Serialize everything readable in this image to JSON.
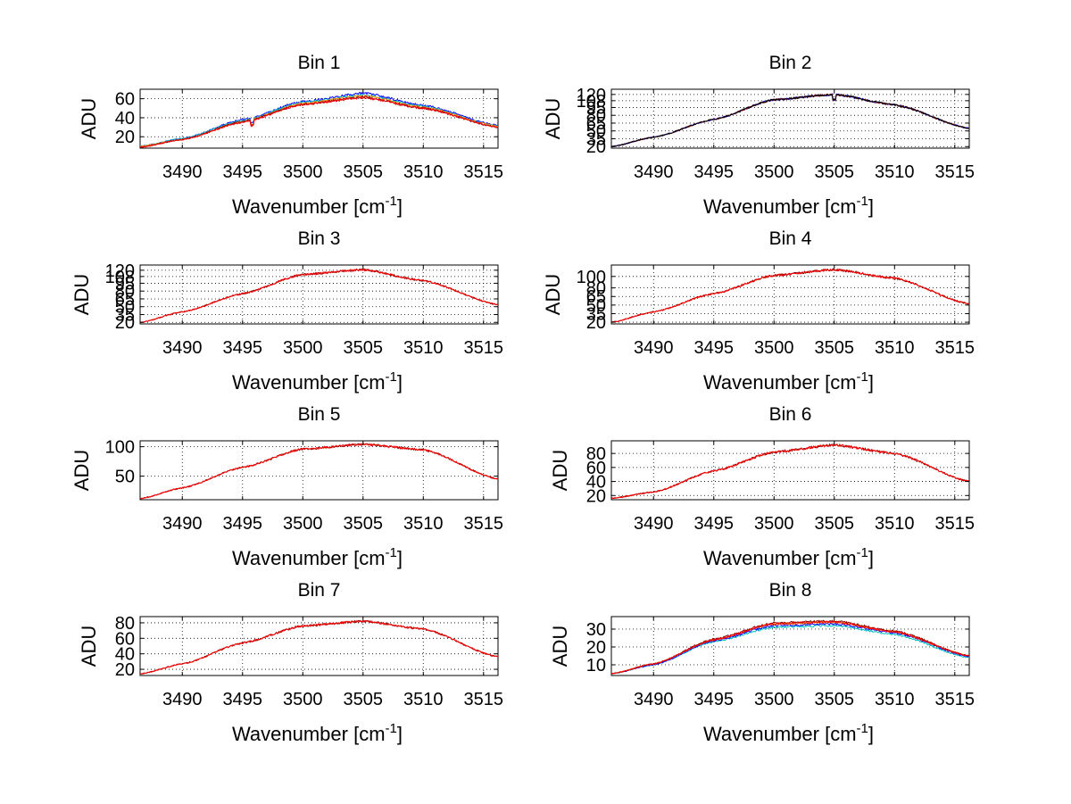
{
  "chart_data": [
    {
      "type": "line",
      "title": "Bin 1",
      "xlabel": "Wavenumber [cm",
      "xlabel_sup": "-1",
      "xlabel_tail": "]",
      "ylabel": "ADU",
      "xlim": [
        3486.5,
        3516.2
      ],
      "ylim": [
        8,
        70
      ],
      "xticks": [
        3490,
        3495,
        3500,
        3505,
        3510,
        3515
      ],
      "xtick_labels": [
        "3490",
        "3495",
        "3500",
        "3505",
        "3510",
        "3515"
      ],
      "yticks": [
        20,
        40,
        60
      ],
      "ytick_labels": [
        "20",
        "40",
        "60"
      ],
      "grid": true,
      "x": [
        3486.5,
        3490,
        3495,
        3500,
        3505,
        3510,
        3516.2
      ],
      "series": [
        {
          "values": [
            10,
            18,
            38,
            57,
            66,
            53,
            32
          ],
          "color": "#0000ff",
          "noise": 1.2,
          "dip": 3495.8
        },
        {
          "values": [
            10,
            18,
            37,
            56,
            64,
            52,
            31
          ],
          "color": "#00bfbf",
          "noise": 1.2,
          "dip": 3495.8
        },
        {
          "values": [
            10,
            17,
            36,
            55,
            63,
            51,
            31
          ],
          "color": "#ff8c00",
          "noise": 1.2,
          "dip": 3495.8
        },
        {
          "values": [
            9,
            17,
            36,
            54,
            62,
            50,
            30
          ],
          "color": "#800000",
          "noise": 1.2,
          "dip": 3495.8
        },
        {
          "values": [
            9,
            17,
            35,
            54,
            61,
            50,
            30
          ],
          "color": "#ff0000",
          "noise": 1.2,
          "dip": 3495.8
        }
      ]
    },
    {
      "type": "line",
      "title": "Bin 2",
      "xlabel": "Wavenumber [cm",
      "xlabel_sup": "-1",
      "xlabel_tail": "]",
      "ylabel": "ADU",
      "xlim": [
        3486.5,
        3516.2
      ],
      "ylim": [
        17,
        130
      ],
      "xticks": [
        3490,
        3495,
        3500,
        3505,
        3510,
        3515
      ],
      "xtick_labels": [
        "3490",
        "3495",
        "3500",
        "3505",
        "3510",
        "3515"
      ],
      "yticks": [
        20,
        35,
        50,
        65,
        80,
        95,
        108,
        120
      ],
      "ytick_labels": [
        "20",
        "35",
        "50",
        "65",
        "80",
        "95",
        "108",
        "120"
      ],
      "grid": true,
      "x": [
        3486.5,
        3490,
        3495,
        3500,
        3505,
        3510,
        3516.2
      ],
      "series": [
        {
          "values": [
            20,
            38,
            72,
            110,
            120,
            100,
            55
          ],
          "color": "#0000ff",
          "noise": 2,
          "dip": 3505
        },
        {
          "values": [
            20,
            38,
            72,
            110,
            120,
            100,
            55
          ],
          "color": "#800000",
          "noise": 2,
          "dip": 3505
        },
        {
          "values": [
            20,
            38,
            72,
            110,
            120,
            100,
            55
          ],
          "color": "#000000",
          "noise": 2,
          "dip": 3505
        }
      ]
    },
    {
      "type": "line",
      "title": "Bin 3",
      "xlabel": "Wavenumber [cm",
      "xlabel_sup": "-1",
      "xlabel_tail": "]",
      "ylabel": "ADU",
      "xlim": [
        3486.5,
        3516.2
      ],
      "ylim": [
        17,
        130
      ],
      "xticks": [
        3490,
        3495,
        3500,
        3505,
        3510,
        3515
      ],
      "xtick_labels": [
        "3490",
        "3495",
        "3500",
        "3505",
        "3510",
        "3515"
      ],
      "yticks": [
        20,
        35,
        50,
        65,
        80,
        95,
        108,
        120
      ],
      "ytick_labels": [
        "20",
        "35",
        "50",
        "65",
        "80",
        "95",
        "108",
        "120"
      ],
      "grid": true,
      "x": [
        3486.5,
        3490,
        3495,
        3500,
        3505,
        3510,
        3516.2
      ],
      "series": [
        {
          "values": [
            20,
            40,
            75,
            112,
            121,
            100,
            54
          ],
          "color": "#800000",
          "noise": 2
        },
        {
          "values": [
            20,
            40,
            75,
            112,
            121,
            100,
            54
          ],
          "color": "#ff0000",
          "noise": 2
        }
      ]
    },
    {
      "type": "line",
      "title": "Bin 4",
      "xlabel": "Wavenumber [cm",
      "xlabel_sup": "-1",
      "xlabel_tail": "]",
      "ylabel": "ADU",
      "xlim": [
        3486.5,
        3516.2
      ],
      "ylim": [
        17,
        120
      ],
      "xticks": [
        3490,
        3495,
        3500,
        3505,
        3510,
        3515
      ],
      "xtick_labels": [
        "3490",
        "3495",
        "3500",
        "3505",
        "3510",
        "3515"
      ],
      "yticks": [
        20,
        35,
        50,
        65,
        80,
        100
      ],
      "ytick_labels": [
        "20",
        "35",
        "50",
        "65",
        "80",
        "100"
      ],
      "grid": true,
      "x": [
        3486.5,
        3490,
        3495,
        3500,
        3505,
        3510,
        3516.2
      ],
      "series": [
        {
          "values": [
            20,
            38,
            70,
            102,
            112,
            97,
            52
          ],
          "color": "#800000",
          "noise": 2
        },
        {
          "values": [
            20,
            38,
            70,
            102,
            112,
            97,
            52
          ],
          "color": "#ff0000",
          "noise": 2
        }
      ]
    },
    {
      "type": "line",
      "title": "Bin 5",
      "xlabel": "Wavenumber [cm",
      "xlabel_sup": "-1",
      "xlabel_tail": "]",
      "ylabel": "ADU",
      "xlim": [
        3486.5,
        3516.2
      ],
      "ylim": [
        10,
        110
      ],
      "xticks": [
        3490,
        3495,
        3500,
        3505,
        3510,
        3515
      ],
      "xtick_labels": [
        "3490",
        "3495",
        "3500",
        "3505",
        "3510",
        "3515"
      ],
      "yticks": [
        50,
        100
      ],
      "ytick_labels": [
        "50",
        "100"
      ],
      "grid": true,
      "x": [
        3486.5,
        3490,
        3495,
        3500,
        3505,
        3510,
        3516.2
      ],
      "series": [
        {
          "values": [
            12,
            30,
            65,
            96,
            104,
            95,
            45
          ],
          "color": "#800000",
          "noise": 1.8
        },
        {
          "values": [
            12,
            30,
            65,
            96,
            104,
            95,
            45
          ],
          "color": "#ff0000",
          "noise": 1.8
        }
      ]
    },
    {
      "type": "line",
      "title": "Bin 6",
      "xlabel": "Wavenumber [cm",
      "xlabel_sup": "-1",
      "xlabel_tail": "]",
      "ylabel": "ADU",
      "xlim": [
        3486.5,
        3516.2
      ],
      "ylim": [
        14,
        98
      ],
      "xticks": [
        3490,
        3495,
        3500,
        3505,
        3510,
        3515
      ],
      "xtick_labels": [
        "3490",
        "3495",
        "3500",
        "3505",
        "3510",
        "3515"
      ],
      "yticks": [
        20,
        40,
        60,
        80
      ],
      "ytick_labels": [
        "20",
        "40",
        "60",
        "80"
      ],
      "grid": true,
      "x": [
        3486.5,
        3490,
        3495,
        3500,
        3505,
        3510,
        3516.2
      ],
      "series": [
        {
          "values": [
            16,
            25,
            55,
            82,
            92,
            80,
            40
          ],
          "color": "#800000",
          "noise": 1.8
        },
        {
          "values": [
            16,
            25,
            55,
            82,
            92,
            80,
            40
          ],
          "color": "#ff0000",
          "noise": 1.8
        }
      ]
    },
    {
      "type": "line",
      "title": "Bin 7",
      "xlabel": "Wavenumber [cm",
      "xlabel_sup": "-1",
      "xlabel_tail": "]",
      "ylabel": "ADU",
      "xlim": [
        3486.5,
        3516.2
      ],
      "ylim": [
        12,
        88
      ],
      "xticks": [
        3490,
        3495,
        3500,
        3505,
        3510,
        3515
      ],
      "xtick_labels": [
        "3490",
        "3495",
        "3500",
        "3505",
        "3510",
        "3515"
      ],
      "yticks": [
        20,
        40,
        60,
        80
      ],
      "ytick_labels": [
        "20",
        "40",
        "60",
        "80"
      ],
      "grid": true,
      "x": [
        3486.5,
        3490,
        3495,
        3500,
        3505,
        3510,
        3516.2
      ],
      "series": [
        {
          "values": [
            14,
            27,
            54,
            76,
            82,
            72,
            36
          ],
          "color": "#800000",
          "noise": 1.4
        },
        {
          "values": [
            14,
            27,
            54,
            76,
            82,
            72,
            36
          ],
          "color": "#ff0000",
          "noise": 1.4
        }
      ]
    },
    {
      "type": "line",
      "title": "Bin 8",
      "xlabel": "Wavenumber [cm",
      "xlabel_sup": "-1",
      "xlabel_tail": "]",
      "ylabel": "ADU",
      "xlim": [
        3486.5,
        3516.2
      ],
      "ylim": [
        4,
        37
      ],
      "xticks": [
        3490,
        3495,
        3500,
        3505,
        3510,
        3515
      ],
      "xtick_labels": [
        "3490",
        "3495",
        "3500",
        "3505",
        "3510",
        "3515"
      ],
      "yticks": [
        10,
        20,
        30
      ],
      "ytick_labels": [
        "10",
        "20",
        "30"
      ],
      "grid": true,
      "x": [
        3486.5,
        3490,
        3495,
        3500,
        3505,
        3510,
        3516.2
      ],
      "series": [
        {
          "values": [
            5,
            10,
            23,
            31,
            32,
            27,
            14
          ],
          "color": "#00bfbf",
          "noise": 0.6
        },
        {
          "values": [
            5,
            10,
            23.5,
            32,
            33,
            28,
            14.5
          ],
          "color": "#0000ff",
          "noise": 0.6
        },
        {
          "values": [
            5,
            10.5,
            24,
            33,
            34,
            28.5,
            15
          ],
          "color": "#ff8c00",
          "noise": 0.6
        },
        {
          "values": [
            5,
            10.5,
            24.5,
            33.5,
            34.5,
            29,
            15
          ],
          "color": "#800000",
          "noise": 0.6
        },
        {
          "values": [
            5,
            10.5,
            24,
            33,
            34,
            28.5,
            15
          ],
          "color": "#ff0000",
          "noise": 0.6
        }
      ]
    }
  ]
}
